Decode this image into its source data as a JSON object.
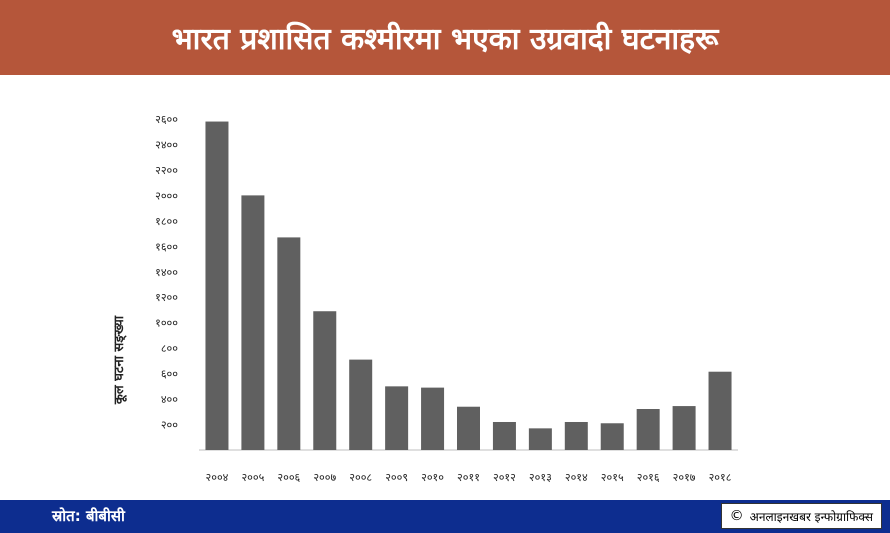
{
  "header": {
    "title": "भारत प्रशासित कश्मीरमा भएका उग्रवादी घटनाहरू"
  },
  "footer": {
    "source": "स्रोत: बीबीसी",
    "credit_symbol": "©",
    "credit": "अनलाइनखबर इन्फोग्राफिक्स"
  },
  "colors": {
    "header_bg": "#b5563a",
    "footer_bg": "#0d2d8f",
    "bar": "#606060"
  },
  "chart_data": {
    "type": "bar",
    "ylabel": "कूल घटना सङ्ख्या",
    "categories": [
      "२००४",
      "२००५",
      "२००६",
      "२००७",
      "२००८",
      "२००९",
      "२०१०",
      "२०११",
      "२०१२",
      "२०१३",
      "२०१४",
      "२०१५",
      "२०१६",
      "२०१७",
      "२०१८"
    ],
    "values": [
      2580,
      2000,
      1670,
      1090,
      710,
      500,
      490,
      340,
      220,
      170,
      220,
      210,
      322,
      345,
      615
    ],
    "yticks": [
      200,
      400,
      600,
      800,
      1000,
      1200,
      1400,
      1600,
      1800,
      2000,
      2200,
      2400,
      2600
    ],
    "ytick_labels": [
      "२००",
      "४००",
      "६००",
      "८००",
      "१०००",
      "१२००",
      "१४००",
      "१६००",
      "१८००",
      "२०००",
      "२२००",
      "२४००",
      "२६००"
    ],
    "ylim": [
      0,
      2600
    ],
    "grid": false,
    "legend": "none"
  }
}
